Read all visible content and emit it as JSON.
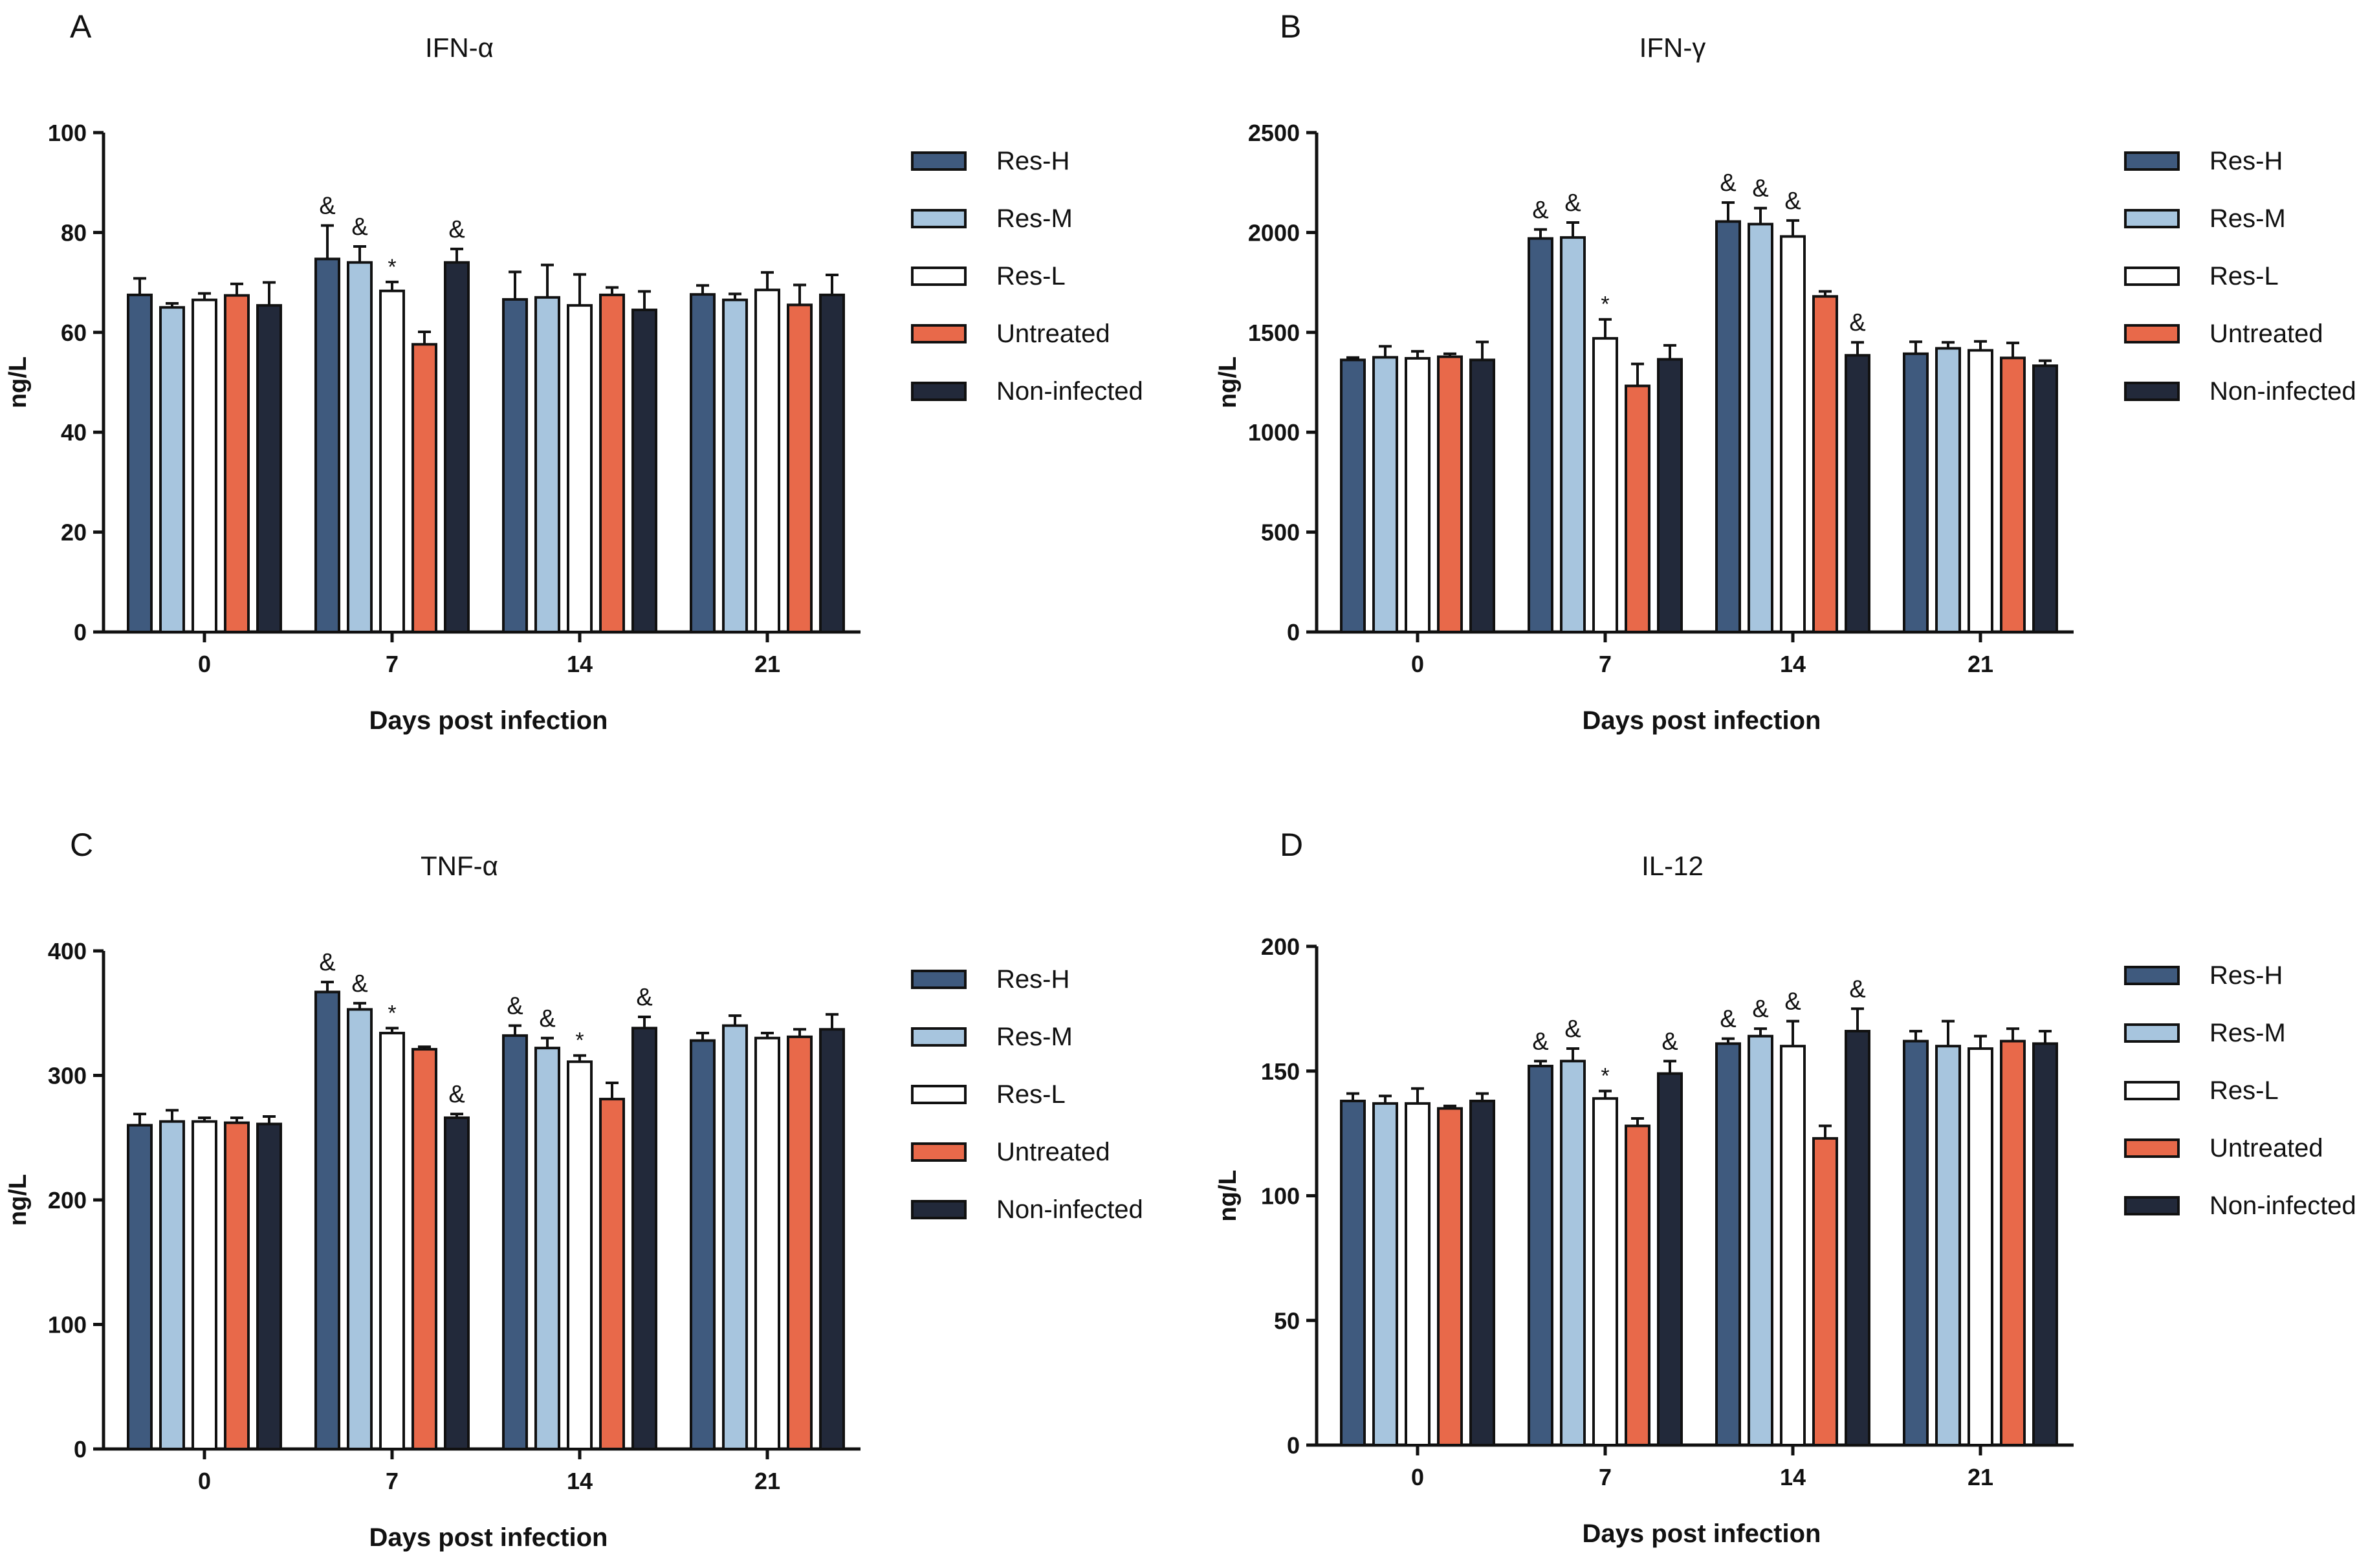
{
  "legend": {
    "entries": [
      "Res-H",
      "Res-M",
      "Res-L",
      "Untreated",
      "Non-infected"
    ],
    "colors": [
      "#3f5a7e",
      "#a7c5de",
      "#ffffff",
      "#e8694a",
      "#22293a"
    ]
  },
  "chart_data": [
    {
      "panel": "A",
      "type": "bar",
      "title": "IFN-α",
      "xlabel": "Days post infection",
      "ylabel": "ng/L",
      "categories": [
        "0",
        "7",
        "14",
        "21"
      ],
      "ylim": [
        0,
        100
      ],
      "yticks": [
        "0",
        "20",
        "40",
        "60",
        "80",
        "100"
      ],
      "series": [
        {
          "name": "Res-H",
          "values": [
            67.5,
            74.7,
            66.6,
            67.6
          ],
          "errors": [
            3.3,
            6.7,
            5.5,
            1.8
          ],
          "marks": [
            "",
            "&",
            "",
            ""
          ]
        },
        {
          "name": "Res-M",
          "values": [
            65.0,
            74.0,
            67.0,
            66.5
          ],
          "errors": [
            0.8,
            3.2,
            6.5,
            1.2
          ],
          "marks": [
            "",
            "&",
            "",
            ""
          ]
        },
        {
          "name": "Res-L",
          "values": [
            66.5,
            68.3,
            65.4,
            68.5
          ],
          "errors": [
            1.3,
            1.8,
            6.2,
            3.5
          ],
          "marks": [
            "",
            "*",
            "",
            ""
          ]
        },
        {
          "name": "Untreated",
          "values": [
            67.4,
            57.6,
            67.5,
            65.5
          ],
          "errors": [
            2.3,
            2.5,
            1.5,
            4.0
          ],
          "marks": [
            "",
            "",
            "",
            ""
          ]
        },
        {
          "name": "Non-infected",
          "values": [
            65.4,
            74.0,
            64.5,
            67.5
          ],
          "errors": [
            4.6,
            2.7,
            3.7,
            4.0
          ],
          "marks": [
            "",
            "&",
            "",
            ""
          ]
        }
      ]
    },
    {
      "panel": "B",
      "type": "bar",
      "title": "IFN-γ",
      "xlabel": "Days post infection",
      "ylabel": "ng/L",
      "categories": [
        "0",
        "7",
        "14",
        "21"
      ],
      "ylim": [
        0,
        2500
      ],
      "yticks": [
        "0",
        "500",
        "1000",
        "1500",
        "2000",
        "2500"
      ],
      "series": [
        {
          "name": "Res-H",
          "values": [
            1362,
            1970,
            2055,
            1393
          ],
          "errors": [
            12,
            45,
            95,
            60
          ],
          "marks": [
            "",
            "&",
            "&",
            ""
          ]
        },
        {
          "name": "Res-M",
          "values": [
            1375,
            1975,
            2042,
            1420
          ],
          "errors": [
            55,
            75,
            80,
            30
          ],
          "marks": [
            "",
            "&",
            "&",
            ""
          ]
        },
        {
          "name": "Res-L",
          "values": [
            1370,
            1470,
            1980,
            1410
          ],
          "errors": [
            35,
            95,
            80,
            45
          ],
          "marks": [
            "",
            "*",
            "&",
            ""
          ]
        },
        {
          "name": "Untreated",
          "values": [
            1378,
            1232,
            1680,
            1372
          ],
          "errors": [
            15,
            110,
            25,
            75
          ],
          "marks": [
            "",
            "",
            "",
            ""
          ]
        },
        {
          "name": "Non-infected",
          "values": [
            1362,
            1365,
            1385,
            1333
          ],
          "errors": [
            90,
            70,
            65,
            25
          ],
          "marks": [
            "",
            "",
            "&",
            ""
          ]
        }
      ]
    },
    {
      "panel": "C",
      "type": "bar",
      "title": "TNF-α",
      "xlabel": "Days post infection",
      "ylabel": "ng/L",
      "categories": [
        "0",
        "7",
        "14",
        "21"
      ],
      "ylim": [
        0,
        400
      ],
      "yticks": [
        "0",
        "100",
        "200",
        "300",
        "400"
      ],
      "series": [
        {
          "name": "Res-H",
          "values": [
            260,
            367,
            332,
            328
          ],
          "errors": [
            9,
            8,
            8,
            6
          ],
          "marks": [
            "",
            "&",
            "&",
            ""
          ]
        },
        {
          "name": "Res-M",
          "values": [
            263,
            353,
            322,
            340
          ],
          "errors": [
            9,
            5,
            8,
            8
          ],
          "marks": [
            "",
            "&",
            "&",
            ""
          ]
        },
        {
          "name": "Res-L",
          "values": [
            263,
            334,
            311,
            330
          ],
          "errors": [
            3,
            4,
            5,
            4
          ],
          "marks": [
            "",
            "*",
            "*",
            ""
          ]
        },
        {
          "name": "Untreated",
          "values": [
            262,
            321,
            281,
            331
          ],
          "errors": [
            4,
            2,
            13,
            6
          ],
          "marks": [
            "",
            "",
            "",
            ""
          ]
        },
        {
          "name": "Non-infected",
          "values": [
            261,
            266,
            338,
            337
          ],
          "errors": [
            6,
            3,
            9,
            12
          ],
          "marks": [
            "",
            "&",
            "&",
            ""
          ]
        }
      ]
    },
    {
      "panel": "D",
      "type": "bar",
      "title": "IL-12",
      "xlabel": "Days post infection",
      "ylabel": "ng/L",
      "categories": [
        "0",
        "7",
        "14",
        "21"
      ],
      "ylim": [
        0,
        200
      ],
      "yticks": [
        "0",
        "50",
        "100",
        "150",
        "200"
      ],
      "series": [
        {
          "name": "Res-H",
          "values": [
            138,
            152,
            161,
            162
          ],
          "errors": [
            3,
            2,
            2,
            4
          ],
          "marks": [
            "",
            "&",
            "&",
            ""
          ]
        },
        {
          "name": "Res-M",
          "values": [
            137,
            154,
            164,
            160
          ],
          "errors": [
            3,
            5,
            3,
            10
          ],
          "marks": [
            "",
            "&",
            "&",
            ""
          ]
        },
        {
          "name": "Res-L",
          "values": [
            137,
            139,
            160,
            159
          ],
          "errors": [
            6,
            3,
            10,
            5
          ],
          "marks": [
            "",
            "*",
            "&",
            ""
          ]
        },
        {
          "name": "Untreated",
          "values": [
            135,
            128,
            123,
            162
          ],
          "errors": [
            1,
            3,
            5,
            5
          ],
          "marks": [
            "",
            "",
            "",
            ""
          ]
        },
        {
          "name": "Non-infected",
          "values": [
            138,
            149,
            166,
            161
          ],
          "errors": [
            3,
            5,
            9,
            5
          ],
          "marks": [
            "",
            "&",
            "&",
            ""
          ]
        }
      ]
    }
  ]
}
